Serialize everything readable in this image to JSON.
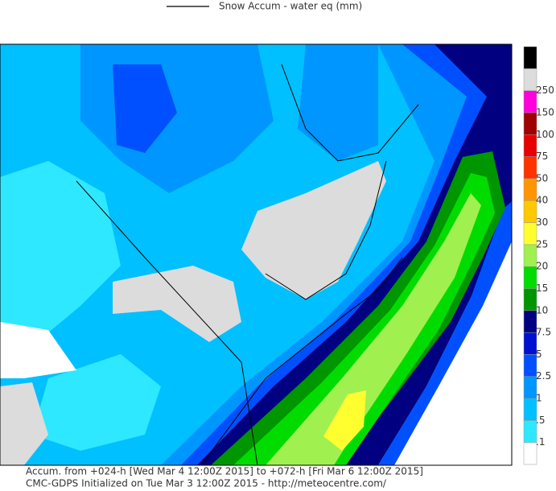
{
  "legend": {
    "title": "Snow Accum - water eq (mm)"
  },
  "colorbar": {
    "levels": [
      ".1",
      ".5",
      "1",
      "2.5",
      "5",
      "7.5",
      "10",
      "15",
      "20",
      "25",
      "30",
      "40",
      "50",
      "75",
      "100",
      "150",
      "250"
    ],
    "colors": [
      "#ffffff",
      "#2ee8ff",
      "#00c0ff",
      "#0096ff",
      "#0050ff",
      "#0010d0",
      "#000080",
      "#009600",
      "#00dc00",
      "#a0f050",
      "#ffff30",
      "#ffc800",
      "#ff9600",
      "#ff3200",
      "#e60000",
      "#a00000",
      "#ff00dc",
      "#dcdcdc",
      "#000000"
    ]
  },
  "footer": {
    "line1": "Accum. from +024-h [Wed Mar 4 12:00Z 2015] to +072-h [Fri Mar 6 12:00Z 2015]",
    "line2": "CMC-GDPS Initialized on Tue Mar 3 12:00Z 2015 - http://meteocentre.com/"
  }
}
